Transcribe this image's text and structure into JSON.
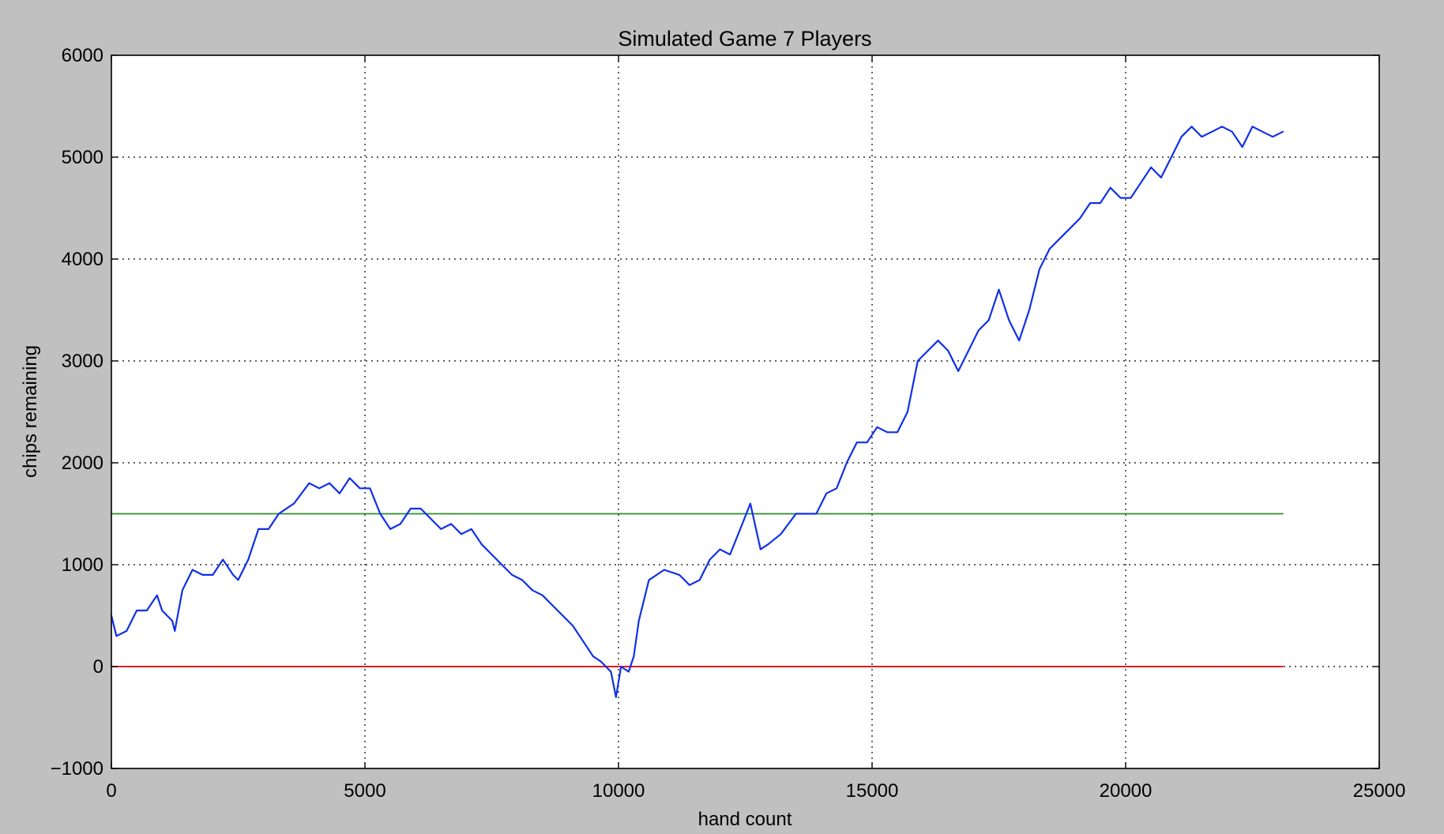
{
  "chart_data": {
    "type": "line",
    "title": "Simulated Game 7 Players",
    "xlabel": "hand count",
    "ylabel": "chips remaining",
    "xlim": [
      0,
      25000
    ],
    "ylim": [
      -1000,
      6000
    ],
    "xticks": [
      0,
      5000,
      10000,
      15000,
      20000,
      25000
    ],
    "yticks": [
      -1000,
      0,
      1000,
      2000,
      3000,
      4000,
      5000,
      6000
    ],
    "xtick_labels": [
      "0",
      "5000",
      "10000",
      "15000",
      "20000",
      "25000"
    ],
    "ytick_labels": [
      "−1000",
      "0",
      "1000",
      "2000",
      "3000",
      "4000",
      "5000",
      "6000"
    ],
    "grid": true,
    "series": [
      {
        "color": "#1030e8",
        "x": [
          0,
          100,
          300,
          500,
          700,
          900,
          1000,
          1200,
          1250,
          1400,
          1600,
          1800,
          2000,
          2200,
          2400,
          2500,
          2700,
          2900,
          3100,
          3300,
          3600,
          3900,
          4100,
          4300,
          4500,
          4700,
          4900,
          5100,
          5300,
          5500,
          5700,
          5900,
          6100,
          6300,
          6500,
          6700,
          6900,
          7100,
          7300,
          7500,
          7700,
          7900,
          8100,
          8300,
          8500,
          8700,
          8900,
          9100,
          9300,
          9500,
          9650,
          9750,
          9850,
          9950,
          10050,
          10200,
          10300,
          10400,
          10600,
          10900,
          11200,
          11400,
          11600,
          11800,
          12000,
          12200,
          12400,
          12600,
          12800,
          12950,
          13200,
          13500,
          13700,
          13900,
          14100,
          14300,
          14500,
          14700,
          14900,
          15100,
          15300,
          15500,
          15700,
          15900,
          16100,
          16300,
          16500,
          16700,
          16900,
          17100,
          17300,
          17500,
          17700,
          17900,
          18100,
          18300,
          18500,
          18700,
          18900,
          19100,
          19300,
          19500,
          19700,
          19900,
          20100,
          20300,
          20500,
          20700,
          20900,
          21100,
          21300,
          21500,
          21700,
          21900,
          22100,
          22300,
          22500,
          22700,
          22900,
          23100
        ],
        "y": [
          500,
          300,
          350,
          550,
          550,
          700,
          550,
          450,
          350,
          750,
          950,
          900,
          900,
          1050,
          900,
          850,
          1050,
          1350,
          1350,
          1500,
          1600,
          1800,
          1750,
          1800,
          1700,
          1850,
          1750,
          1750,
          1500,
          1350,
          1400,
          1550,
          1550,
          1450,
          1350,
          1400,
          1300,
          1350,
          1200,
          1100,
          1000,
          900,
          850,
          750,
          700,
          600,
          500,
          400,
          250,
          100,
          50,
          0,
          -50,
          -300,
          0,
          -50,
          100,
          450,
          850,
          950,
          900,
          800,
          850,
          1050,
          1150,
          1100,
          1350,
          1600,
          1150,
          1200,
          1300,
          1500,
          1500,
          1500,
          1700,
          1750,
          2000,
          2200,
          2200,
          2350,
          2300,
          2300,
          2500,
          3000,
          3100,
          3200,
          3100,
          2900,
          3100,
          3300,
          3400,
          3700,
          3400,
          3200,
          3500,
          3900,
          4100,
          4200,
          4300,
          4400,
          4550,
          4550,
          4700,
          4600,
          4600,
          4750,
          4900,
          4800,
          5000,
          5200,
          5300,
          5200,
          5250,
          5300,
          5250,
          5100,
          5300,
          5250,
          5200,
          5250
        ]
      },
      {
        "color": "#2e8b2e",
        "x": [
          0,
          23100
        ],
        "y": [
          1500,
          1500
        ]
      },
      {
        "color": "#e00000",
        "x": [
          0,
          23100
        ],
        "y": [
          0,
          0
        ]
      }
    ]
  }
}
